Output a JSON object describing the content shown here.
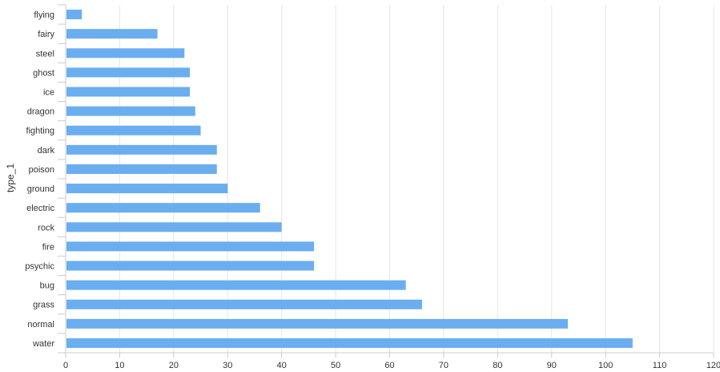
{
  "chart_data": {
    "type": "bar",
    "orientation": "horizontal",
    "title": "",
    "xlabel": "",
    "ylabel": "type_1",
    "categories": [
      "flying",
      "fairy",
      "steel",
      "ghost",
      "ice",
      "dragon",
      "fighting",
      "dark",
      "poison",
      "ground",
      "electric",
      "rock",
      "fire",
      "psychic",
      "bug",
      "grass",
      "normal",
      "water"
    ],
    "values": [
      3,
      17,
      22,
      23,
      23,
      24,
      25,
      28,
      28,
      30,
      36,
      40,
      46,
      46,
      63,
      66,
      93,
      105
    ],
    "xlim": [
      0,
      120
    ],
    "xticks": [
      0,
      10,
      20,
      30,
      40,
      50,
      60,
      70,
      80,
      90,
      100,
      110,
      120
    ],
    "grid": "vertical",
    "colors": {
      "bar": "#6aaef0",
      "grid": "#e6e6e6",
      "axis": "#cccccc"
    }
  }
}
